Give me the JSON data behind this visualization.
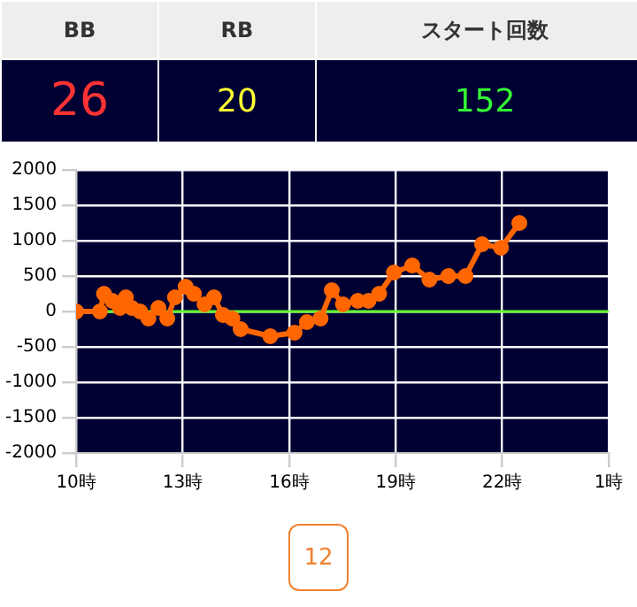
{
  "chart_data": [
    {
      "type": "other",
      "annotations": [
        "BB",
        "RB",
        "スタート回数",
        "26",
        "20",
        "152"
      ]
    },
    {
      "type": "line",
      "color": "#ff6600",
      "marker": "circle",
      "grid": true,
      "legend": false,
      "x": [
        "--01-01T10:00",
        "--01-01T10:40",
        "--01-01T10:47",
        "--01-01T11:01",
        "--01-01T11:14",
        "--01-01T11:24",
        "--01-01T11:34",
        "--01-01T11:48",
        "--01-01T12:02",
        "--01-01T12:19",
        "--01-01T12:34",
        "--01-01T12:47",
        "--01-01T13:05",
        "--01-01T13:19",
        "--01-01T13:37",
        "--01-01T13:53",
        "--01-01T14:08",
        "--01-01T14:24",
        "--01-01T14:38",
        "--01-01T15:28",
        "--01-01T16:09",
        "--01-01T16:30",
        "--01-01T16:53",
        "--01-01T17:12",
        "--01-01T17:31",
        "--01-01T17:56",
        "--01-01T18:14",
        "--01-01T18:32",
        "--01-01T18:57",
        "--01-01T19:28",
        "--01-01T19:57",
        "--01-01T20:29",
        "--01-01T20:58",
        "--01-01T21:26",
        "--01-01T21:58",
        "--01-01T22:29"
      ],
      "values": [
        0,
        0,
        250,
        150,
        50,
        200,
        50,
        0,
        -100,
        50,
        -100,
        200,
        350,
        250,
        100,
        200,
        -50,
        -100,
        -250,
        -350,
        -300,
        -150,
        -100,
        300,
        100,
        150,
        150,
        250,
        550,
        650,
        450,
        500,
        500,
        950,
        900,
        1250
      ],
      "xlim": [
        "--01-01T10:00",
        "--01-02T01:00"
      ],
      "xticks": [
        {
          "value": "--01-01T10:00",
          "label": "10時"
        },
        {
          "value": "--01-01T13:00",
          "label": "13時"
        },
        {
          "value": "--01-01T16:00",
          "label": "16時"
        },
        {
          "value": "--01-01T19:00",
          "label": "19時"
        },
        {
          "value": "--01-01T22:00",
          "label": "22時"
        },
        {
          "value": "--01-02T01:00",
          "label": "1時"
        }
      ],
      "ylim": [
        -2000,
        2000
      ],
      "yticks": [
        -2000,
        -1500,
        -1000,
        -500,
        0,
        500,
        1000,
        1500,
        2000
      ],
      "ref_lines": [
        {
          "axis": "y",
          "value": 0,
          "color": "#66ff33"
        }
      ],
      "annotations": [
        "12"
      ]
    }
  ]
}
